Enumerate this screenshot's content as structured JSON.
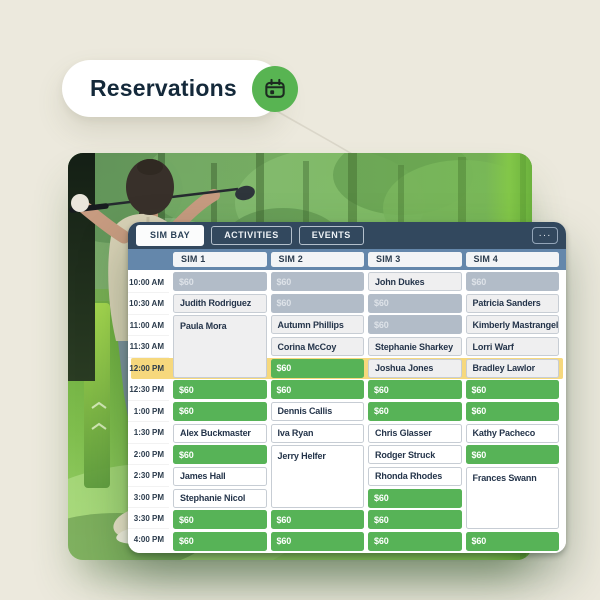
{
  "badge": {
    "label": "Reservations",
    "icon": "calendar-icon"
  },
  "panel": {
    "tabs": [
      {
        "label": "SIM BAY",
        "active": true
      },
      {
        "label": "ACTIVITIES",
        "active": false
      },
      {
        "label": "EVENTS",
        "active": false
      }
    ],
    "more_label": "···",
    "columns": [
      "SIM 1",
      "SIM 2",
      "SIM 3",
      "SIM 4"
    ]
  },
  "schedule": {
    "times": [
      "10:00 AM",
      "10:30 AM",
      "11:00 AM",
      "11:30 AM",
      "12:00 PM",
      "12:30 PM",
      "1:00 PM",
      "1:30 PM",
      "2:00 PM",
      "2:30 PM",
      "3:00 PM",
      "3:30 PM",
      "4:00 PM"
    ],
    "current_time": "12:00 PM",
    "price_label": "$60",
    "cells": [
      {
        "col": 1,
        "row": 1,
        "span": 1,
        "type": "past_price",
        "label": "$60"
      },
      {
        "col": 1,
        "row": 2,
        "span": 1,
        "type": "past_booking",
        "label": "Judith Rodriguez"
      },
      {
        "col": 1,
        "row": 3,
        "span": 3,
        "type": "past_booking",
        "label": "Paula Mora"
      },
      {
        "col": 1,
        "row": 6,
        "span": 1,
        "type": "price",
        "label": "$60"
      },
      {
        "col": 1,
        "row": 7,
        "span": 1,
        "type": "price",
        "label": "$60"
      },
      {
        "col": 1,
        "row": 8,
        "span": 1,
        "type": "booking",
        "label": "Alex Buckmaster"
      },
      {
        "col": 1,
        "row": 9,
        "span": 1,
        "type": "price",
        "label": "$60"
      },
      {
        "col": 1,
        "row": 10,
        "span": 1,
        "type": "booking",
        "label": "James Hall"
      },
      {
        "col": 1,
        "row": 11,
        "span": 1,
        "type": "booking",
        "label": "Stephanie Nicol"
      },
      {
        "col": 1,
        "row": 12,
        "span": 1,
        "type": "price",
        "label": "$60"
      },
      {
        "col": 1,
        "row": 13,
        "span": 1,
        "type": "price",
        "label": "$60"
      },
      {
        "col": 2,
        "row": 1,
        "span": 1,
        "type": "past_price",
        "label": "$60"
      },
      {
        "col": 2,
        "row": 2,
        "span": 1,
        "type": "past_price",
        "label": "$60"
      },
      {
        "col": 2,
        "row": 3,
        "span": 1,
        "type": "past_booking",
        "label": "Autumn Phillips"
      },
      {
        "col": 2,
        "row": 4,
        "span": 1,
        "type": "past_booking",
        "label": "Corina McCoy"
      },
      {
        "col": 2,
        "row": 5,
        "span": 1,
        "type": "price",
        "label": "$60"
      },
      {
        "col": 2,
        "row": 6,
        "span": 1,
        "type": "price",
        "label": "$60"
      },
      {
        "col": 2,
        "row": 7,
        "span": 1,
        "type": "booking",
        "label": "Dennis Callis"
      },
      {
        "col": 2,
        "row": 8,
        "span": 1,
        "type": "booking",
        "label": "Iva Ryan"
      },
      {
        "col": 2,
        "row": 9,
        "span": 3,
        "type": "booking",
        "label": "Jerry Helfer"
      },
      {
        "col": 2,
        "row": 12,
        "span": 1,
        "type": "price",
        "label": "$60"
      },
      {
        "col": 2,
        "row": 13,
        "span": 1,
        "type": "price",
        "label": "$60"
      },
      {
        "col": 3,
        "row": 1,
        "span": 1,
        "type": "past_booking",
        "label": "John Dukes"
      },
      {
        "col": 3,
        "row": 2,
        "span": 1,
        "type": "past_price",
        "label": "$60"
      },
      {
        "col": 3,
        "row": 3,
        "span": 1,
        "type": "past_price",
        "label": "$60"
      },
      {
        "col": 3,
        "row": 4,
        "span": 1,
        "type": "past_booking",
        "label": "Stephanie Sharkey"
      },
      {
        "col": 3,
        "row": 5,
        "span": 1,
        "type": "past_booking",
        "label": "Joshua Jones"
      },
      {
        "col": 3,
        "row": 6,
        "span": 1,
        "type": "price",
        "label": "$60"
      },
      {
        "col": 3,
        "row": 7,
        "span": 1,
        "type": "price",
        "label": "$60"
      },
      {
        "col": 3,
        "row": 8,
        "span": 1,
        "type": "booking",
        "label": "Chris Glasser"
      },
      {
        "col": 3,
        "row": 9,
        "span": 1,
        "type": "booking",
        "label": "Rodger Struck"
      },
      {
        "col": 3,
        "row": 10,
        "span": 1,
        "type": "booking",
        "label": "Rhonda Rhodes"
      },
      {
        "col": 3,
        "row": 11,
        "span": 1,
        "type": "price",
        "label": "$60"
      },
      {
        "col": 3,
        "row": 12,
        "span": 1,
        "type": "price",
        "label": "$60"
      },
      {
        "col": 3,
        "row": 13,
        "span": 1,
        "type": "price",
        "label": "$60"
      },
      {
        "col": 4,
        "row": 1,
        "span": 1,
        "type": "past_price",
        "label": "$60"
      },
      {
        "col": 4,
        "row": 2,
        "span": 1,
        "type": "past_booking",
        "label": "Patricia Sanders"
      },
      {
        "col": 4,
        "row": 3,
        "span": 1,
        "type": "past_booking",
        "label": "Kimberly Mastrangelo"
      },
      {
        "col": 4,
        "row": 4,
        "span": 1,
        "type": "past_booking",
        "label": "Lorri Warf"
      },
      {
        "col": 4,
        "row": 5,
        "span": 1,
        "type": "past_booking",
        "label": "Bradley Lawlor"
      },
      {
        "col": 4,
        "row": 6,
        "span": 1,
        "type": "price",
        "label": "$60"
      },
      {
        "col": 4,
        "row": 7,
        "span": 1,
        "type": "price",
        "label": "$60"
      },
      {
        "col": 4,
        "row": 8,
        "span": 1,
        "type": "booking",
        "label": "Kathy Pacheco"
      },
      {
        "col": 4,
        "row": 9,
        "span": 1,
        "type": "price",
        "label": "$60"
      },
      {
        "col": 4,
        "row": 10,
        "span": 3,
        "type": "booking",
        "label": "Frances Swann"
      },
      {
        "col": 4,
        "row": 13,
        "span": 1,
        "type": "price",
        "label": "$60"
      }
    ]
  },
  "colors": {
    "accent_green": "#57b357",
    "header_navy": "#32485e",
    "column_bar_blue": "#6487ab",
    "highlight_yellow": "#f6d87d",
    "unavailable_gray": "#b2bcc8",
    "background_cream": "#ece9dd"
  }
}
